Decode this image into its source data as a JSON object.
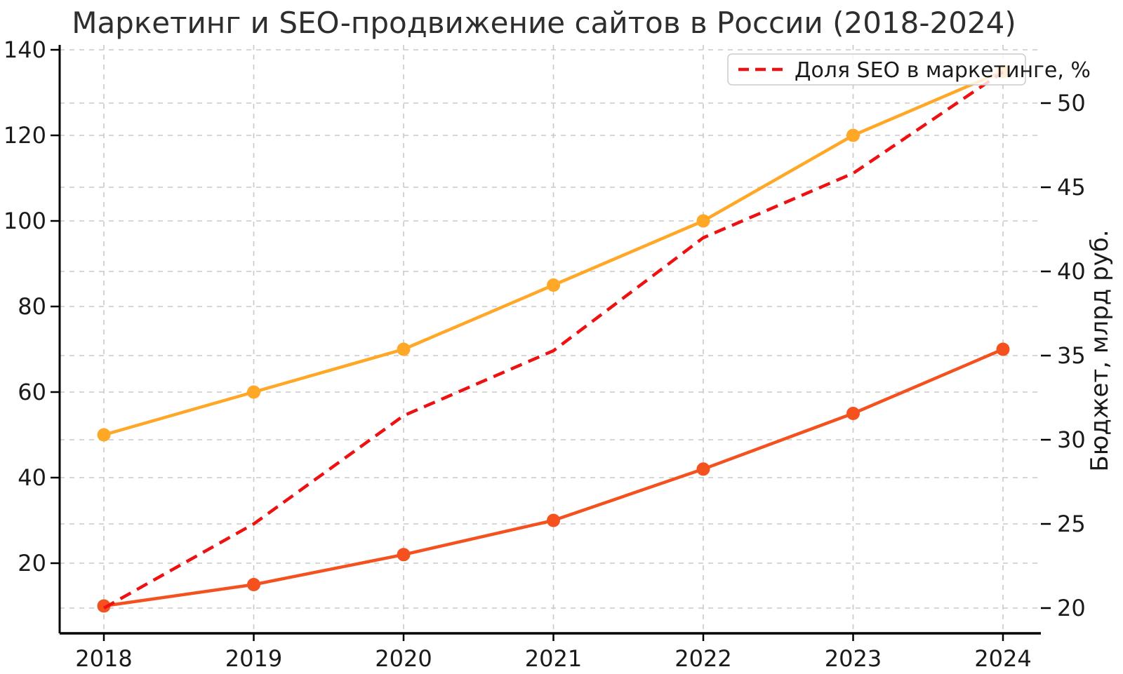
{
  "chart_data": {
    "type": "line",
    "title": "Маркетинг и SEO-продвижение сайтов в России (2018-2024)",
    "x_categories": [
      "2018",
      "2019",
      "2020",
      "2021",
      "2022",
      "2023",
      "2024"
    ],
    "series": [
      {
        "id": "orange-solid-line",
        "axis": "left",
        "color": "#FFA726",
        "line_style": "solid",
        "markers": true,
        "values": [
          50,
          60,
          70,
          85,
          100,
          120,
          135
        ]
      },
      {
        "id": "deep-orange-solid-line",
        "axis": "left",
        "color": "#F4511E",
        "line_style": "solid",
        "markers": true,
        "values": [
          10,
          15,
          22,
          30,
          42,
          55,
          70
        ]
      },
      {
        "id": "seo-share-dashed-line",
        "axis": "right",
        "color": "#EE1111",
        "line_style": "dashed",
        "markers": false,
        "legend_label": "Доля SEO в маркетинге, %",
        "values": [
          20,
          25,
          31.43,
          35.29,
          42,
          45.83,
          51.85
        ]
      }
    ],
    "axes": {
      "left": {
        "ticks": [
          20,
          40,
          60,
          80,
          100,
          120,
          140
        ],
        "range": [
          3.5,
          141
        ]
      },
      "right": {
        "ticks": [
          20,
          25,
          30,
          35,
          40,
          45,
          50
        ],
        "range": [
          18.5,
          52.5
        ],
        "label": "Бюджет, млрд руб."
      },
      "x": {
        "ticks": [
          "2018",
          "2019",
          "2020",
          "2021",
          "2022",
          "2023",
          "2024"
        ]
      }
    },
    "legend": {
      "position": "upper right",
      "entries": [
        "Доля SEO в маркетинге, %"
      ]
    },
    "grid": true,
    "style": {
      "grid_color": "#c9c9c9",
      "spine_color": "#000000",
      "text_color": "#1a1a1a",
      "background": "#ffffff"
    }
  }
}
